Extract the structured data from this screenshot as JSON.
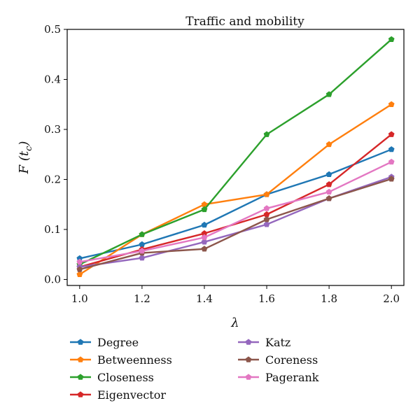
{
  "chart_data": {
    "type": "line",
    "title": "Traffic and mobility",
    "xlabel": "λ",
    "ylabel": "F (t",
    "ylabel_sub": "c",
    "ylabel_close": ")",
    "x": [
      1.0,
      1.2,
      1.4,
      1.6,
      1.8,
      2.0
    ],
    "x_tick_labels": [
      "1.0",
      "1.2",
      "1.4",
      "1.6",
      "1.8",
      "2.0"
    ],
    "y_ticks": [
      0.0,
      0.1,
      0.2,
      0.3,
      0.4,
      0.5
    ],
    "y_tick_labels": [
      "0.0",
      "0.1",
      "0.2",
      "0.3",
      "0.4",
      "0.5"
    ],
    "xlim": [
      0.96,
      2.04
    ],
    "ylim": [
      -0.012,
      0.5
    ],
    "grid": false,
    "legend_position": "bottom",
    "series": [
      {
        "name": "Degree",
        "color": "#1f77b4",
        "values": [
          0.042,
          0.07,
          0.109,
          0.17,
          0.21,
          0.26
        ]
      },
      {
        "name": "Betweenness",
        "color": "#ff7f0e",
        "values": [
          0.01,
          0.09,
          0.15,
          0.17,
          0.27,
          0.35
        ]
      },
      {
        "name": "Closeness",
        "color": "#2ca02c",
        "values": [
          0.03,
          0.09,
          0.14,
          0.29,
          0.37,
          0.48
        ]
      },
      {
        "name": "Eigenvector",
        "color": "#d62728",
        "values": [
          0.025,
          0.06,
          0.092,
          0.13,
          0.19,
          0.29
        ]
      },
      {
        "name": "Katz",
        "color": "#9467bd",
        "values": [
          0.025,
          0.043,
          0.075,
          0.11,
          0.162,
          0.205
        ]
      },
      {
        "name": "Coreness",
        "color": "#8c564b",
        "values": [
          0.02,
          0.053,
          0.061,
          0.12,
          0.162,
          0.201
        ]
      },
      {
        "name": "Pagerank",
        "color": "#e377c2",
        "values": [
          0.035,
          0.057,
          0.084,
          0.142,
          0.175,
          0.235
        ]
      }
    ]
  }
}
